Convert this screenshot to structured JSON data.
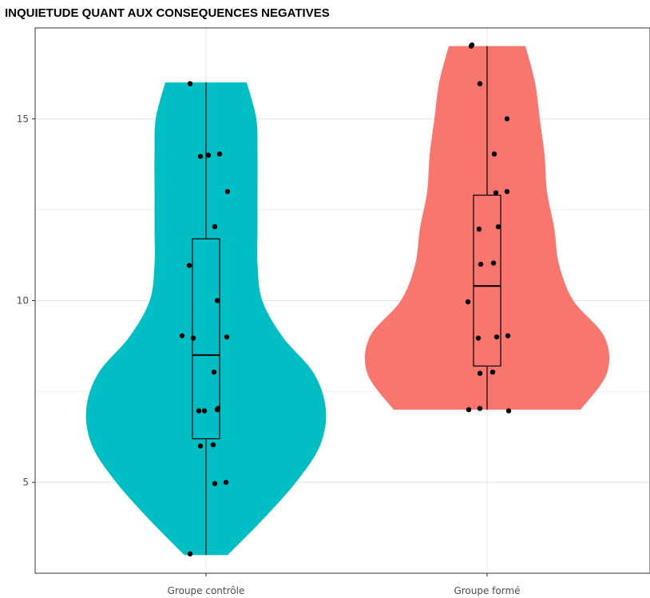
{
  "chart_data": {
    "type": "violin",
    "title": "INQUIETUDE QUANT AUX CONSEQUENCES NEGATIVES",
    "xlabel": "",
    "ylabel": "",
    "categories": [
      "Groupe contrôle",
      "Groupe formé"
    ],
    "ylim": [
      2.5,
      17.5
    ],
    "yticks": [
      5,
      10,
      15
    ],
    "grid": true,
    "legend": "none",
    "groups": [
      {
        "category": "Groupe contrôle",
        "color": "#00BFC4",
        "points": [
          3,
          5,
          5,
          6,
          6,
          7,
          7,
          7,
          7,
          8,
          9,
          9,
          9,
          10,
          11,
          12,
          13,
          14,
          14,
          14,
          16
        ],
        "box": {
          "min": 3,
          "q1": 6.2,
          "median": 8.5,
          "q3": 11.7,
          "max": 16
        },
        "violin": {
          "y": [
            3.0,
            4.0,
            5.0,
            6.0,
            7.0,
            8.0,
            9.0,
            10.0,
            11.0,
            12.0,
            13.0,
            14.0,
            15.0,
            16.0
          ],
          "width": [
            0.18,
            0.48,
            0.75,
            0.95,
            1.0,
            0.9,
            0.64,
            0.47,
            0.43,
            0.43,
            0.43,
            0.43,
            0.42,
            0.34
          ]
        }
      },
      {
        "category": "Groupe formé",
        "color": "#F8766D",
        "points": [
          7,
          7,
          7,
          8,
          8,
          9,
          9,
          9,
          10,
          11,
          11,
          12,
          12,
          13,
          13,
          14,
          15,
          16,
          17,
          17
        ],
        "box": {
          "min": 7,
          "q1": 8.2,
          "median": 10.4,
          "q3": 12.9,
          "max": 17
        },
        "violin": {
          "y": [
            7.0,
            8.0,
            9.0,
            10.0,
            11.0,
            12.0,
            13.0,
            14.0,
            15.0,
            16.0,
            17.0
          ],
          "width": [
            0.78,
            1.0,
            0.98,
            0.72,
            0.6,
            0.56,
            0.5,
            0.48,
            0.44,
            0.4,
            0.32
          ]
        }
      }
    ]
  }
}
